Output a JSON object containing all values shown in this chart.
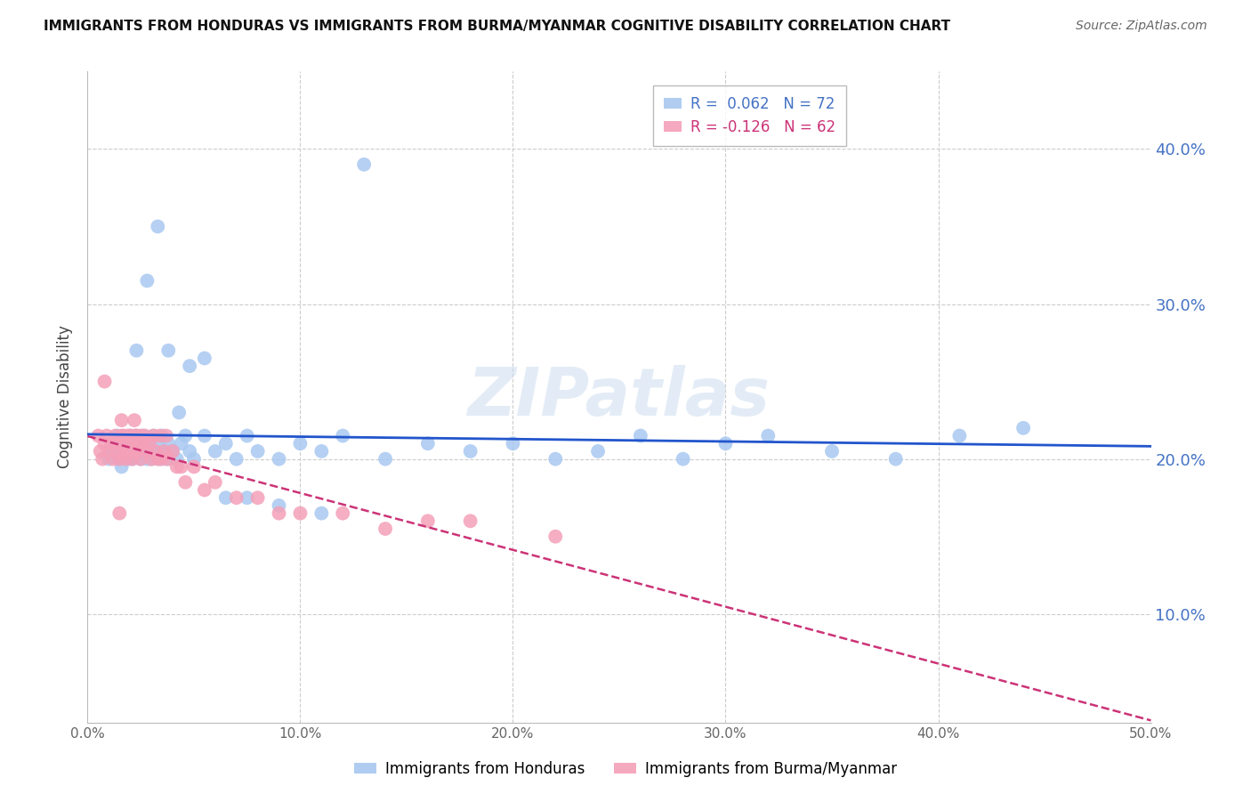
{
  "title": "IMMIGRANTS FROM HONDURAS VS IMMIGRANTS FROM BURMA/MYANMAR COGNITIVE DISABILITY CORRELATION CHART",
  "source": "Source: ZipAtlas.com",
  "ylabel": "Cognitive Disability",
  "series1_label": "Immigrants from Honduras",
  "series2_label": "Immigrants from Burma/Myanmar",
  "series1_color": "#a8c8f0",
  "series2_color": "#f4a0b8",
  "trendline1_color": "#2255cc",
  "trendline2_color": "#cc3377",
  "background_color": "#ffffff",
  "grid_color": "#cccccc",
  "watermark": "ZIPatlas",
  "xlim": [
    0.0,
    0.5
  ],
  "ylim": [
    0.03,
    0.45
  ],
  "xtick_values": [
    0.0,
    0.1,
    0.2,
    0.3,
    0.4,
    0.5
  ],
  "ytick_values": [
    0.1,
    0.2,
    0.3,
    0.4
  ],
  "legend_r1": "R =  0.062",
  "legend_n1": "N = 72",
  "legend_r2": "R = -0.126",
  "legend_n2": "N = 62",
  "series1_x": [
    0.01,
    0.012,
    0.013,
    0.014,
    0.015,
    0.016,
    0.017,
    0.018,
    0.019,
    0.02,
    0.02,
    0.021,
    0.022,
    0.023,
    0.024,
    0.025,
    0.025,
    0.026,
    0.027,
    0.028,
    0.029,
    0.03,
    0.031,
    0.032,
    0.033,
    0.034,
    0.035,
    0.036,
    0.037,
    0.038,
    0.04,
    0.042,
    0.044,
    0.046,
    0.048,
    0.05,
    0.055,
    0.06,
    0.065,
    0.07,
    0.075,
    0.08,
    0.09,
    0.1,
    0.11,
    0.12,
    0.14,
    0.16,
    0.18,
    0.2,
    0.22,
    0.24,
    0.26,
    0.28,
    0.3,
    0.32,
    0.35,
    0.38,
    0.41,
    0.44,
    0.023,
    0.028,
    0.033,
    0.038,
    0.043,
    0.048,
    0.055,
    0.065,
    0.075,
    0.09,
    0.11,
    0.13
  ],
  "series1_y": [
    0.2,
    0.205,
    0.21,
    0.215,
    0.2,
    0.195,
    0.205,
    0.21,
    0.2,
    0.205,
    0.215,
    0.2,
    0.21,
    0.215,
    0.205,
    0.2,
    0.21,
    0.215,
    0.205,
    0.2,
    0.21,
    0.2,
    0.215,
    0.205,
    0.21,
    0.2,
    0.215,
    0.205,
    0.2,
    0.21,
    0.205,
    0.2,
    0.21,
    0.215,
    0.205,
    0.2,
    0.215,
    0.205,
    0.21,
    0.2,
    0.215,
    0.205,
    0.2,
    0.21,
    0.205,
    0.215,
    0.2,
    0.21,
    0.205,
    0.21,
    0.2,
    0.205,
    0.215,
    0.2,
    0.21,
    0.215,
    0.205,
    0.2,
    0.215,
    0.22,
    0.27,
    0.315,
    0.35,
    0.27,
    0.23,
    0.26,
    0.265,
    0.175,
    0.175,
    0.17,
    0.165,
    0.39
  ],
  "series2_x": [
    0.005,
    0.006,
    0.007,
    0.008,
    0.009,
    0.01,
    0.011,
    0.012,
    0.013,
    0.014,
    0.015,
    0.015,
    0.016,
    0.016,
    0.017,
    0.017,
    0.018,
    0.018,
    0.019,
    0.019,
    0.02,
    0.02,
    0.021,
    0.021,
    0.022,
    0.022,
    0.023,
    0.023,
    0.024,
    0.025,
    0.025,
    0.026,
    0.027,
    0.028,
    0.029,
    0.03,
    0.031,
    0.032,
    0.033,
    0.034,
    0.035,
    0.036,
    0.037,
    0.038,
    0.04,
    0.042,
    0.044,
    0.046,
    0.05,
    0.055,
    0.06,
    0.07,
    0.08,
    0.09,
    0.1,
    0.12,
    0.14,
    0.16,
    0.18,
    0.22,
    0.008,
    0.015
  ],
  "series2_y": [
    0.215,
    0.205,
    0.2,
    0.21,
    0.215,
    0.205,
    0.21,
    0.2,
    0.215,
    0.205,
    0.21,
    0.2,
    0.215,
    0.225,
    0.205,
    0.215,
    0.21,
    0.2,
    0.215,
    0.205,
    0.21,
    0.215,
    0.205,
    0.2,
    0.215,
    0.225,
    0.205,
    0.215,
    0.21,
    0.215,
    0.2,
    0.21,
    0.215,
    0.205,
    0.21,
    0.2,
    0.215,
    0.205,
    0.2,
    0.215,
    0.2,
    0.205,
    0.215,
    0.2,
    0.205,
    0.195,
    0.195,
    0.185,
    0.195,
    0.18,
    0.185,
    0.175,
    0.175,
    0.165,
    0.165,
    0.165,
    0.155,
    0.16,
    0.16,
    0.15,
    0.25,
    0.165
  ]
}
